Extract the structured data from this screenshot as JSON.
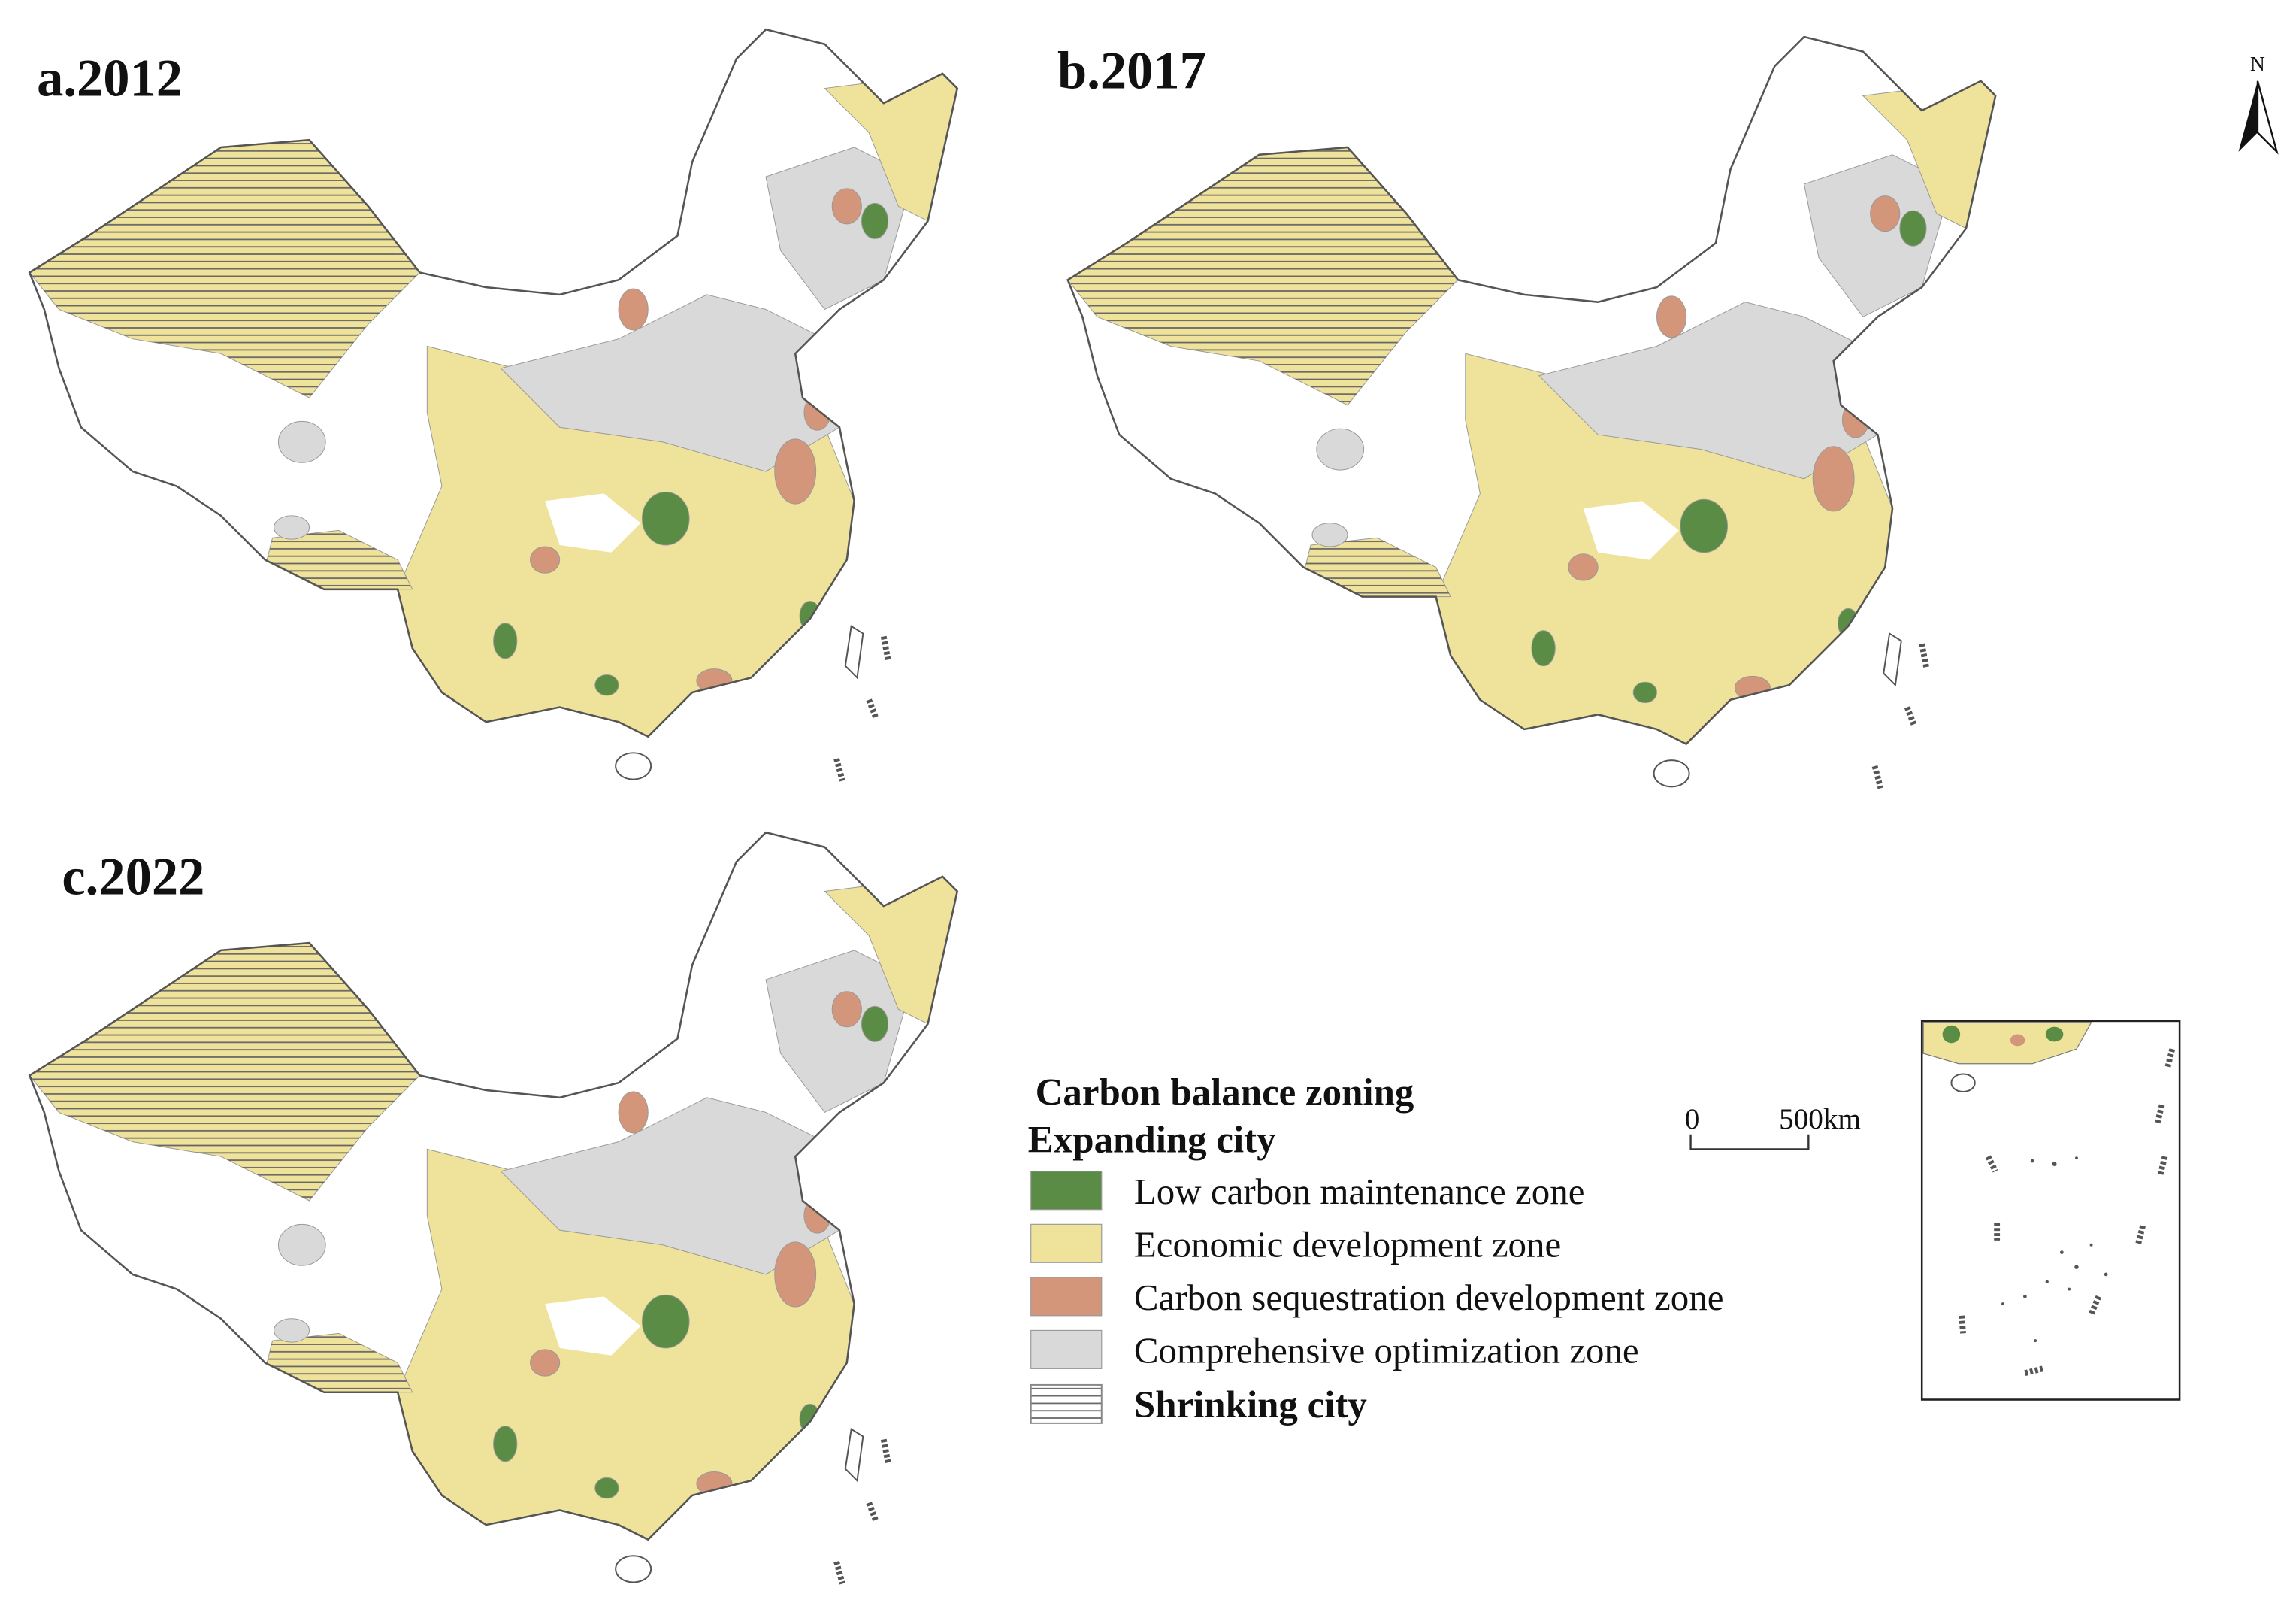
{
  "panels": [
    {
      "title": "a.2012"
    },
    {
      "title": "b.2017"
    },
    {
      "title": "c.2022"
    }
  ],
  "legend": {
    "title": "Carbon balance zoning",
    "subtitle": "Expanding city",
    "items": [
      {
        "label": "Low carbon maintenance zone",
        "color": "#5b8c45"
      },
      {
        "label": "Economic development zone",
        "color": "#efe29a"
      },
      {
        "label": "Carbon sequestration development zone",
        "color": "#d4967a"
      },
      {
        "label": "Comprehensive optimization zone",
        "color": "#d9d9d9"
      }
    ],
    "shrinking": "Shrinking city"
  },
  "scale_bar": {
    "start": "0",
    "end": "500km"
  },
  "north": "N"
}
